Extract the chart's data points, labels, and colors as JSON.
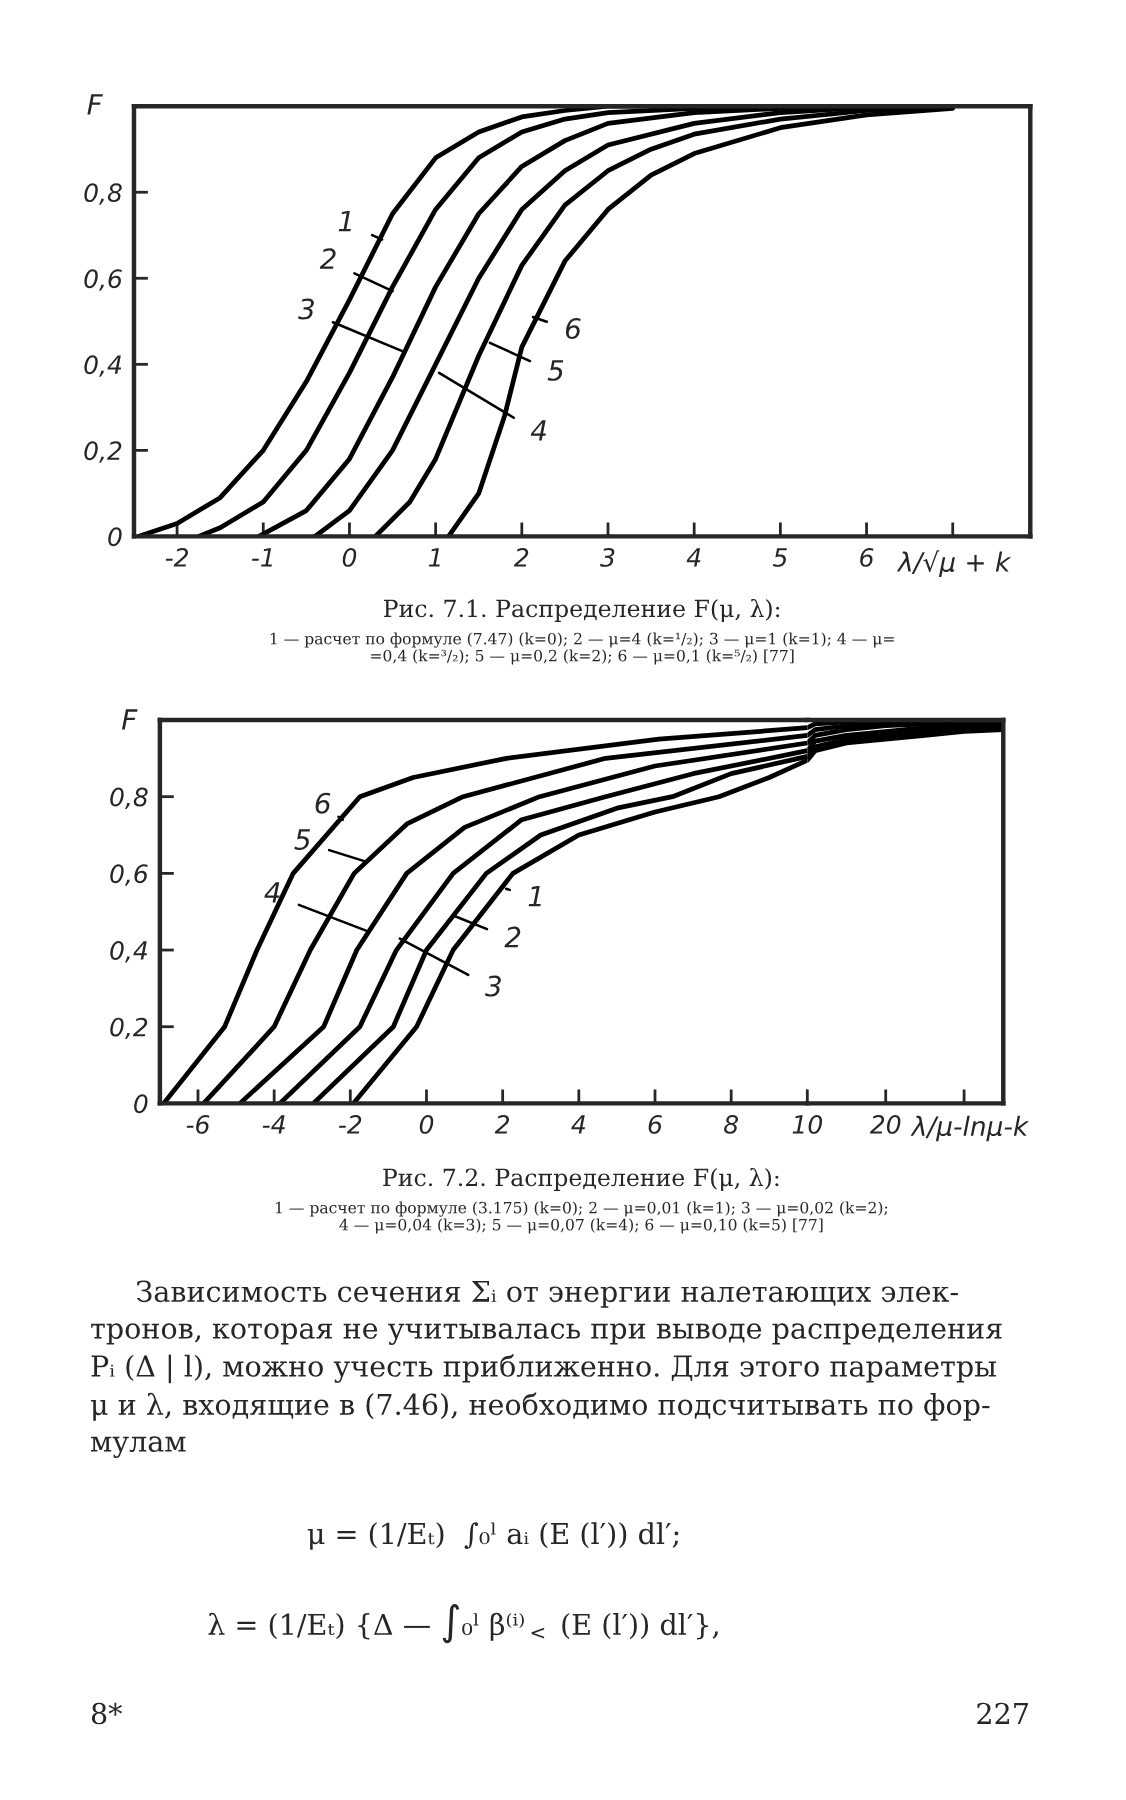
{
  "chart_data": [
    {
      "type": "line",
      "title": "Рис. 7.1. Распределение F(μ, λ):",
      "subtitle": "1 — расчет по формуле (7.47) (k=0); 2 — μ=4 (k=¹/₂); 3 — μ=1 (k=1); 4 — μ=\n=0,4 (k=³/₂); 5 — μ=0,2 (k=2); 6 — μ=0,1 (k=⁵/₂) [77]",
      "xlabel": "λ/√μ + k",
      "ylabel": "F",
      "xlim": [
        -2.5,
        7.9
      ],
      "ylim": [
        0,
        1.0
      ],
      "xticks": [
        -2,
        -1,
        0,
        1,
        2,
        3,
        4,
        5,
        6,
        {
          "value": 7,
          "label": null
        }
      ],
      "yticks": [
        0,
        {
          "value": 0.2,
          "label": "0,2"
        },
        {
          "value": 0.4,
          "label": "0,4"
        },
        {
          "value": 0.6,
          "label": "0,6"
        },
        {
          "value": 0.8,
          "label": "0,8"
        }
      ],
      "series": [
        {
          "color": "#000000",
          "x": [
            -2.45,
            -2,
            -1.5,
            -1,
            -0.5,
            0,
            0.5,
            1,
            1.5,
            2,
            2.5,
            3,
            4
          ],
          "values": [
            0,
            0.03,
            0.09,
            0.2,
            0.36,
            0.55,
            0.75,
            0.88,
            0.94,
            0.975,
            0.99,
            1.0,
            1.0
          ]
        },
        {
          "color": "#000000",
          "x": [
            -1.75,
            -1.5,
            -1,
            -0.5,
            0,
            0.5,
            1,
            1.5,
            2,
            2.5,
            3,
            4,
            5
          ],
          "values": [
            0,
            0.02,
            0.08,
            0.2,
            0.38,
            0.58,
            0.76,
            0.88,
            0.94,
            0.97,
            0.985,
            0.995,
            1.0
          ]
        },
        {
          "color": "#000000",
          "x": [
            -1.05,
            -0.5,
            0,
            0.5,
            1,
            1.5,
            2,
            2.5,
            3,
            4,
            5,
            6
          ],
          "values": [
            0,
            0.06,
            0.18,
            0.37,
            0.58,
            0.75,
            0.86,
            0.92,
            0.96,
            0.985,
            0.995,
            1.0
          ]
        },
        {
          "color": "#000000",
          "x": [
            -0.4,
            0,
            0.5,
            1,
            1.5,
            2,
            2.5,
            3,
            4,
            5,
            6
          ],
          "values": [
            0,
            0.06,
            0.2,
            0.4,
            0.6,
            0.76,
            0.85,
            0.91,
            0.96,
            0.985,
            0.997
          ]
        },
        {
          "color": "#000000",
          "x": [
            0.3,
            0.7,
            1,
            1.5,
            2,
            2.5,
            3,
            3.5,
            4,
            5,
            6,
            7
          ],
          "values": [
            0,
            0.08,
            0.18,
            0.42,
            0.63,
            0.77,
            0.85,
            0.9,
            0.935,
            0.97,
            0.99,
            1.0
          ]
        },
        {
          "color": "#000000",
          "x": [
            1.15,
            1.5,
            1.8,
            2,
            2.5,
            3,
            3.5,
            4,
            5,
            6,
            7
          ],
          "values": [
            0,
            0.1,
            0.28,
            0.44,
            0.64,
            0.76,
            0.84,
            0.89,
            0.95,
            0.98,
            0.995
          ]
        }
      ],
      "annotations": [
        {
          "text": "1",
          "x": 0.38,
          "y": 0.69
        },
        {
          "text": "2",
          "x": 0.5,
          "y": 0.57
        },
        {
          "text": "3",
          "x": 0.62,
          "y": 0.43
        },
        {
          "text": "4",
          "x": 1.04,
          "y": 0.38
        },
        {
          "text": "5",
          "x": 1.63,
          "y": 0.45
        },
        {
          "text": "6",
          "x": 2.13,
          "y": 0.51
        }
      ]
    },
    {
      "type": "line",
      "title": "Рис. 7.2. Распределение F(μ, λ):",
      "subtitle": "1 — расчет по формуле (3.175) (k=0); 2 — μ=0,01 (k=1); 3 — μ=0,02 (k=2);\n4 — μ=0,04 (k=3); 5 — μ=0,07 (k=4); 6 — μ=0,10 (k=5) [77]",
      "ylabel": "F",
      "xlim": [
        -7,
        10
      ],
      "ylim": [
        0,
        1.0
      ],
      "xticks": [
        -6,
        -4,
        -2,
        0,
        2,
        4,
        6,
        8,
        {
          "value": 10,
          "label": null
        }
      ],
      "yticks": [
        0,
        {
          "value": 0.2,
          "label": "0,2"
        },
        {
          "value": 0.4,
          "label": "0,4"
        },
        {
          "value": 0.6,
          "label": "0,6"
        },
        {
          "value": 0.8,
          "label": "0,8"
        }
      ],
      "series": [
        {
          "color": "#000000",
          "x": [
            -1.92,
            -0.26,
            0.7,
            2.27,
            4,
            6,
            7.68,
            9,
            10
          ],
          "values": [
            0,
            0.2,
            0.4,
            0.6,
            0.7,
            0.76,
            0.8,
            0.85,
            0.895
          ]
        },
        {
          "color": "#000000",
          "x": [
            -2.97,
            -0.87,
            0,
            1.57,
            3,
            5,
            6.46,
            8,
            10
          ],
          "values": [
            0,
            0.2,
            0.4,
            0.6,
            0.7,
            0.77,
            0.8,
            0.86,
            0.905
          ]
        },
        {
          "color": "#000000",
          "x": [
            -3.85,
            -1.75,
            -0.79,
            0.7,
            2.5,
            4.7,
            7,
            10
          ],
          "values": [
            0,
            0.2,
            0.4,
            0.6,
            0.74,
            0.8,
            0.86,
            0.92
          ]
        },
        {
          "color": "#000000",
          "x": [
            -4.9,
            -2.7,
            -1.83,
            -0.52,
            1,
            2.97,
            6,
            10
          ],
          "values": [
            0,
            0.2,
            0.4,
            0.6,
            0.72,
            0.8,
            0.88,
            0.94
          ]
        },
        {
          "color": "#000000",
          "x": [
            -5.85,
            -4.0,
            -3.05,
            -1.9,
            -0.5,
            0.96,
            4.7,
            10
          ],
          "values": [
            0,
            0.2,
            0.4,
            0.6,
            0.73,
            0.8,
            0.9,
            0.96
          ]
        },
        {
          "color": "#000000",
          "x": [
            -6.9,
            -5.3,
            -4.45,
            -3.5,
            -1.75,
            -0.35,
            2.1,
            6.1,
            10
          ],
          "values": [
            0,
            0.2,
            0.4,
            0.6,
            0.8,
            0.85,
            0.9,
            0.95,
            0.98
          ]
        }
      ],
      "annotations": [
        {
          "text": "1",
          "x": 2.09,
          "y": 0.56
        },
        {
          "text": "2",
          "x": 0.7,
          "y": 0.49
        },
        {
          "text": "3",
          "x": -0.7,
          "y": 0.43
        },
        {
          "text": "4",
          "x": -1.57,
          "y": 0.45
        },
        {
          "text": "5",
          "x": -1.57,
          "y": 0.63
        },
        {
          "text": "6",
          "x": -2.2,
          "y": 0.74
        }
      ]
    },
    {
      "type": "line",
      "xlabel": "λ/μ-lnμ-k",
      "xlim": [
        10,
        35
      ],
      "ylim": [
        0,
        1.0
      ],
      "tick_labels": "x",
      "xticks": [
        10,
        20,
        {
          "value": 30,
          "label": null
        }
      ],
      "series": [
        {
          "color": "#000000",
          "x": [
            10,
            11,
            15,
            20,
            25,
            30,
            35
          ],
          "values": [
            0.895,
            0.92,
            0.94,
            0.95,
            0.96,
            0.97,
            0.975
          ]
        },
        {
          "color": "#000000",
          "x": [
            10,
            11,
            15,
            20,
            25,
            30,
            35
          ],
          "values": [
            0.905,
            0.93,
            0.95,
            0.96,
            0.97,
            0.98,
            0.985
          ]
        },
        {
          "color": "#000000",
          "x": [
            10,
            11,
            15,
            20,
            25,
            30,
            35
          ],
          "values": [
            0.92,
            0.945,
            0.96,
            0.97,
            0.98,
            0.985,
            0.99
          ]
        },
        {
          "color": "#000000",
          "x": [
            10,
            11,
            15,
            20,
            25,
            30,
            35
          ],
          "values": [
            0.94,
            0.96,
            0.975,
            0.985,
            0.99,
            0.995,
            0.995
          ]
        },
        {
          "color": "#000000",
          "x": [
            10,
            11,
            15,
            20,
            25,
            30,
            35
          ],
          "values": [
            0.96,
            0.975,
            0.985,
            0.99,
            0.995,
            1.0,
            1.0
          ]
        },
        {
          "color": "#000000",
          "x": [
            10,
            11,
            15,
            20,
            25,
            30,
            35
          ],
          "values": [
            0.98,
            0.99,
            0.995,
            1.0,
            1.0,
            1.0,
            1.0
          ]
        }
      ]
    },
    {
      "type": "other",
      "annotations": [
        "     Зависимость сечения Σᵢ от энергии налетающих элек-\nтронов, которая не учитывалась при выводе распределения\nPᵢ (Δ | l), можно учесть приближенно. Для этого параметры\nμ и λ, входящие в (7.46), необходимо подсчитывать по фор-\nмулам",
        "μ = (1/Eₜ)  ∫₀ˡ aᵢ (E (l′)) dl′;",
        "λ = (1/Eₜ) {Δ — ∫₀ˡ β⁽ⁱ⁾$_{<}$ (E (l′)) dl′},",
        "8*",
        "227"
      ]
    }
  ]
}
